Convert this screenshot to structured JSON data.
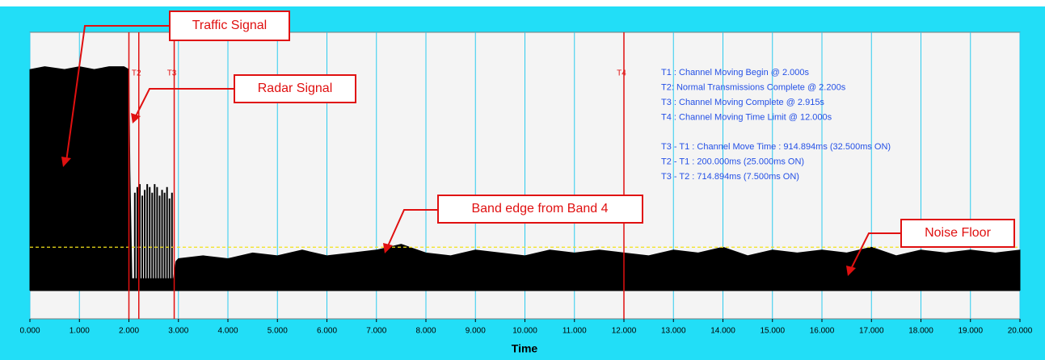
{
  "chart_data": {
    "type": "area",
    "x_label": "Time",
    "xlim": [
      0,
      20
    ],
    "ylim": [
      0,
      100
    ],
    "xticks": [
      {
        "value": 0,
        "label": "0.000"
      },
      {
        "value": 1,
        "label": "1.000"
      },
      {
        "value": 2,
        "label": "2.000"
      },
      {
        "value": 3,
        "label": "3.000"
      },
      {
        "value": 4,
        "label": "4.000"
      },
      {
        "value": 5,
        "label": "5.000"
      },
      {
        "value": 6,
        "label": "6.000"
      },
      {
        "value": 7,
        "label": "7.000"
      },
      {
        "value": 8,
        "label": "8.000"
      },
      {
        "value": 9,
        "label": "9.000"
      },
      {
        "value": 10,
        "label": "10.000"
      },
      {
        "value": 11,
        "label": "11.000"
      },
      {
        "value": 12,
        "label": "12.000"
      },
      {
        "value": 13,
        "label": "13.000"
      },
      {
        "value": 14,
        "label": "14.000"
      },
      {
        "value": 15,
        "label": "15.000"
      },
      {
        "value": 16,
        "label": "16.000"
      },
      {
        "value": 17,
        "label": "17.000"
      },
      {
        "value": 18,
        "label": "18.000"
      },
      {
        "value": 19,
        "label": "19.000"
      },
      {
        "value": 20,
        "label": "20.000"
      }
    ],
    "grid": true,
    "grid_color": "#2ccbef",
    "color": "#000000",
    "x": [
      0,
      0.3,
      0.7,
      1.0,
      1.3,
      1.6,
      1.9,
      2.0,
      2.02,
      2.06,
      2.9,
      2.95,
      3.0,
      3.5,
      4,
      4.5,
      5,
      5.5,
      6,
      6.5,
      7,
      7.5,
      8,
      8.5,
      9,
      9.5,
      10,
      10.5,
      11,
      11.5,
      12,
      12.5,
      13,
      13.5,
      14,
      14.5,
      15,
      15.5,
      16,
      16.5,
      17,
      17.5,
      18,
      18.5,
      19,
      19.5,
      20
    ],
    "values": [
      87,
      88,
      87,
      88,
      87,
      88,
      88,
      87,
      52,
      14,
      14,
      20,
      21,
      22,
      21,
      23,
      22,
      24,
      22,
      23,
      24,
      26,
      23,
      22,
      24,
      23,
      22,
      24,
      23,
      24,
      23,
      22,
      24,
      23,
      25,
      22,
      24,
      23,
      24,
      23,
      25,
      22,
      24,
      23,
      24,
      23,
      24
    ],
    "baseline": 10,
    "pulses": {
      "x": [
        2.12,
        2.17,
        2.22,
        2.27,
        2.32,
        2.37,
        2.42,
        2.47,
        2.52,
        2.57,
        2.62,
        2.67,
        2.72,
        2.77,
        2.82,
        2.87
      ],
      "values": [
        44,
        46,
        47,
        43,
        45,
        47,
        46,
        44,
        47,
        46,
        43,
        45,
        44,
        46,
        42,
        44
      ]
    },
    "threshold": 25,
    "threshold_color": "#f2e21a",
    "marker_color": "#e01010",
    "markers": [
      {
        "x": 2.0
      },
      {
        "x": 2.2,
        "label": "T2"
      },
      {
        "x": 2.915,
        "label": "T3"
      },
      {
        "x": 12.0,
        "label": "T4"
      }
    ],
    "annotations": [
      "T1 : Channel Moving Begin @ 2.000s",
      "T2: Normal Transmissions Complete @ 2.200s",
      "T3 : Channel Moving Complete @ 2.915s",
      "T4 : Channel Moving Time Limit @ 12.000s",
      "T3 - T1 : Channel Move Time : 914.894ms (32.500ms ON)",
      "T2 - T1 : 200.000ms (25.000ms ON)",
      "T3 - T2 : 714.894ms (7.500ms ON)"
    ],
    "callouts": [
      "Traffic Signal",
      "Radar Signal",
      "Band edge from Band 4",
      "Noise Floor"
    ]
  }
}
